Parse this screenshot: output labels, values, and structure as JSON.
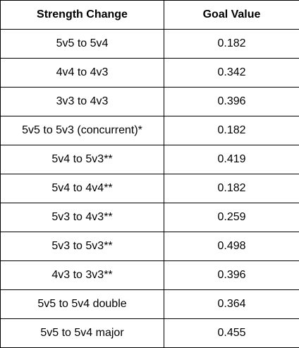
{
  "table": {
    "headers": [
      "Strength Change",
      "Goal Value"
    ],
    "rows": [
      [
        "5v5 to 5v4",
        "0.182"
      ],
      [
        "4v4 to 4v3",
        "0.342"
      ],
      [
        "3v3 to 4v3",
        "0.396"
      ],
      [
        "5v5 to 5v3 (concurrent)*",
        "0.182"
      ],
      [
        "5v4 to 5v3**",
        "0.419"
      ],
      [
        "5v4 to 4v4**",
        "0.182"
      ],
      [
        "5v3 to 4v3**",
        "0.259"
      ],
      [
        "5v3 to 5v3**",
        "0.498"
      ],
      [
        "4v3 to 3v3**",
        "0.396"
      ],
      [
        "5v5 to 5v4 double",
        "0.364"
      ],
      [
        "5v5 to 5v4 major",
        "0.455"
      ]
    ]
  }
}
